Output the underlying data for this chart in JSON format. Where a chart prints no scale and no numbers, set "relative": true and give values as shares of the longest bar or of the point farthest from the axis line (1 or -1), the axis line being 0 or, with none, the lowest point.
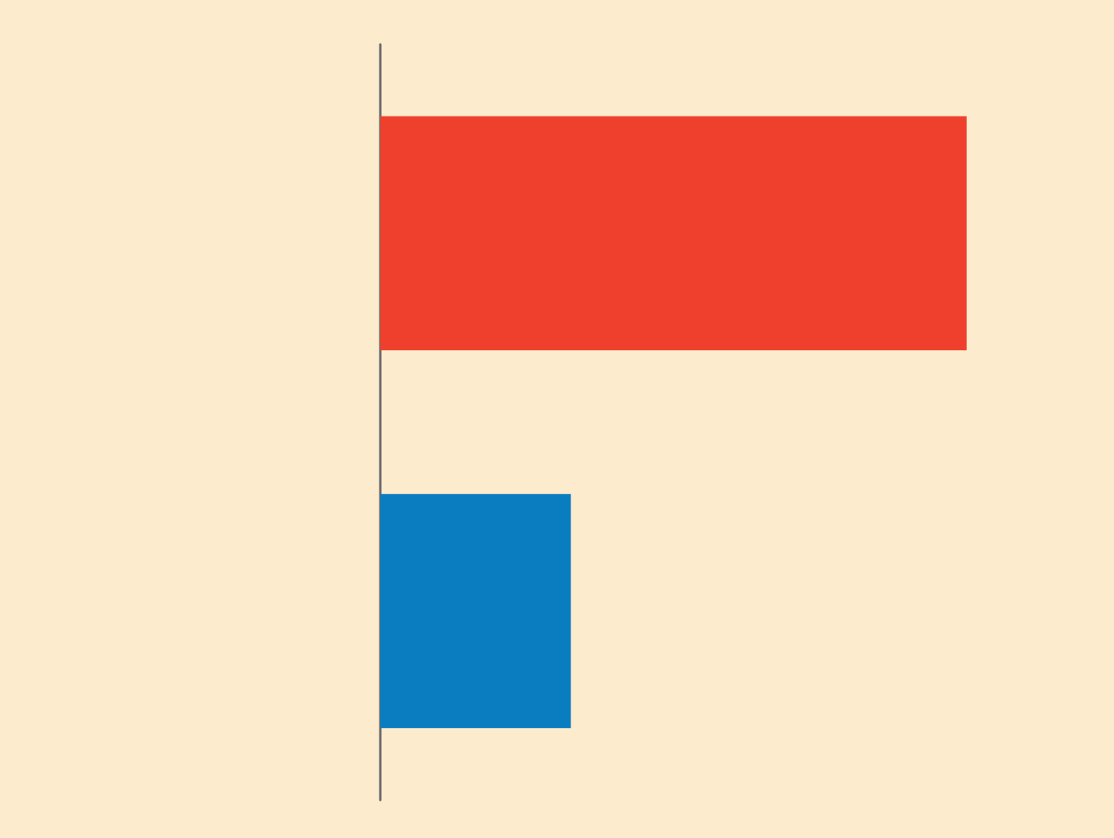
{
  "chart_data": {
    "type": "bar",
    "orientation": "horizontal",
    "relative": true,
    "categories": [
      null,
      null
    ],
    "values": [
      1,
      0.325
    ],
    "colors": [
      "#ef402d",
      "#0a7dc1"
    ]
  }
}
